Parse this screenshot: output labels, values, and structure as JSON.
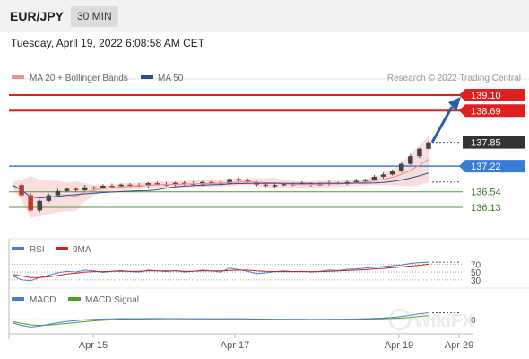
{
  "header": {
    "symbol": "EUR/JPY",
    "timeframe": "30 MIN"
  },
  "datetime": "Tuesday, April 19, 2022 6:08:58 AM CET",
  "credit": "Research © 2022 Trading Central",
  "watermark": "WikiFX",
  "colors": {
    "resistance": "#e02020",
    "pivot": "#3a7bd5",
    "support": "#4a9a3a",
    "current": "#333333",
    "bollinger": "#f6c6c6",
    "ma20": "#f09090",
    "ma50": "#2a4e8e",
    "candle_up": "#444444",
    "candle_down": "#c0392b"
  },
  "chart_data": [
    {
      "type": "candlestick",
      "legend": [
        {
          "name": "MA 20 + Bollinger Bands",
          "color": "#f09090"
        },
        {
          "name": "MA 50",
          "color": "#2a4e8e"
        }
      ],
      "x_ticks": [
        "Apr 15",
        "Apr 17",
        "Apr 19",
        "Apr 29"
      ],
      "ylim": [
        135.75,
        139.3
      ],
      "levels": [
        {
          "label": "139.10",
          "value": 139.1,
          "kind": "resistance"
        },
        {
          "label": "138.69",
          "value": 138.69,
          "kind": "resistance"
        },
        {
          "label": "137.85",
          "value": 137.85,
          "kind": "current"
        },
        {
          "label": "137.22",
          "value": 137.22,
          "kind": "pivot"
        },
        {
          "label": "136.54",
          "value": 136.54,
          "kind": "support"
        },
        {
          "label": "136.13",
          "value": 136.13,
          "kind": "support"
        }
      ],
      "price_path": [
        136.72,
        136.45,
        136.05,
        136.3,
        136.45,
        136.56,
        136.62,
        136.58,
        136.66,
        136.64,
        136.7,
        136.69,
        136.73,
        136.71,
        136.7,
        136.77,
        136.74,
        136.72,
        136.78,
        136.76,
        136.74,
        136.8,
        136.78,
        136.75,
        136.88,
        136.84,
        136.8,
        136.73,
        136.7,
        136.72,
        136.75,
        136.74,
        136.76,
        136.73,
        136.75,
        136.78,
        136.77,
        136.8,
        136.83,
        136.86,
        136.94,
        137.0,
        137.1,
        137.28,
        137.48,
        137.68,
        137.85
      ],
      "projection_target": 139.1
    },
    {
      "type": "line",
      "legend": [
        {
          "name": "RSI",
          "color": "#4a7ccf"
        },
        {
          "name": "9MA",
          "color": "#d02020"
        }
      ],
      "y_ticks": [
        "70",
        "50",
        "30"
      ],
      "ylim": [
        25,
        80
      ],
      "series": [
        {
          "name": "RSI",
          "values": [
            40,
            30,
            28,
            36,
            42,
            48,
            52,
            50,
            55,
            53,
            49,
            52,
            54,
            51,
            50,
            55,
            53,
            51,
            54,
            50,
            52,
            55,
            53,
            50,
            60,
            56,
            52,
            46,
            48,
            51,
            53,
            51,
            52,
            50,
            52,
            55,
            54,
            57,
            58,
            60,
            62,
            64,
            66,
            68,
            72,
            74,
            75
          ]
        },
        {
          "name": "9MA",
          "values": [
            44,
            40,
            36,
            36,
            38,
            41,
            45,
            47,
            50,
            51,
            51,
            52,
            52,
            52,
            52,
            53,
            53,
            53,
            53,
            52,
            52,
            53,
            53,
            53,
            54,
            55,
            55,
            53,
            52,
            51,
            51,
            51,
            51,
            51,
            51,
            52,
            53,
            54,
            55,
            56,
            58,
            59,
            61,
            63,
            65,
            67,
            70
          ]
        }
      ]
    },
    {
      "type": "line",
      "legend": [
        {
          "name": "MACD",
          "color": "#4a7ccf"
        },
        {
          "name": "MACD Signal",
          "color": "#4aa020"
        }
      ],
      "y_ticks": [
        "0"
      ],
      "ylim": [
        -1,
        1
      ],
      "series": [
        {
          "name": "MACD",
          "values": [
            -0.3,
            -0.55,
            -0.7,
            -0.62,
            -0.45,
            -0.3,
            -0.18,
            -0.1,
            -0.02,
            0.02,
            0.05,
            0.06,
            0.08,
            0.08,
            0.07,
            0.09,
            0.09,
            0.08,
            0.08,
            0.07,
            0.06,
            0.07,
            0.06,
            0.05,
            0.08,
            0.07,
            0.05,
            0.02,
            0.0,
            0.0,
            0.01,
            0.01,
            0.01,
            0.0,
            0.01,
            0.02,
            0.02,
            0.03,
            0.05,
            0.07,
            0.1,
            0.14,
            0.2,
            0.28,
            0.4,
            0.52,
            0.62
          ]
        },
        {
          "name": "MACD Signal",
          "values": [
            -0.2,
            -0.35,
            -0.5,
            -0.55,
            -0.52,
            -0.45,
            -0.36,
            -0.28,
            -0.2,
            -0.13,
            -0.07,
            -0.03,
            0.01,
            0.03,
            0.04,
            0.05,
            0.06,
            0.07,
            0.07,
            0.07,
            0.07,
            0.07,
            0.06,
            0.06,
            0.06,
            0.06,
            0.06,
            0.05,
            0.04,
            0.03,
            0.02,
            0.02,
            0.02,
            0.01,
            0.01,
            0.01,
            0.02,
            0.02,
            0.03,
            0.04,
            0.05,
            0.07,
            0.1,
            0.14,
            0.2,
            0.28,
            0.36
          ]
        }
      ]
    }
  ]
}
